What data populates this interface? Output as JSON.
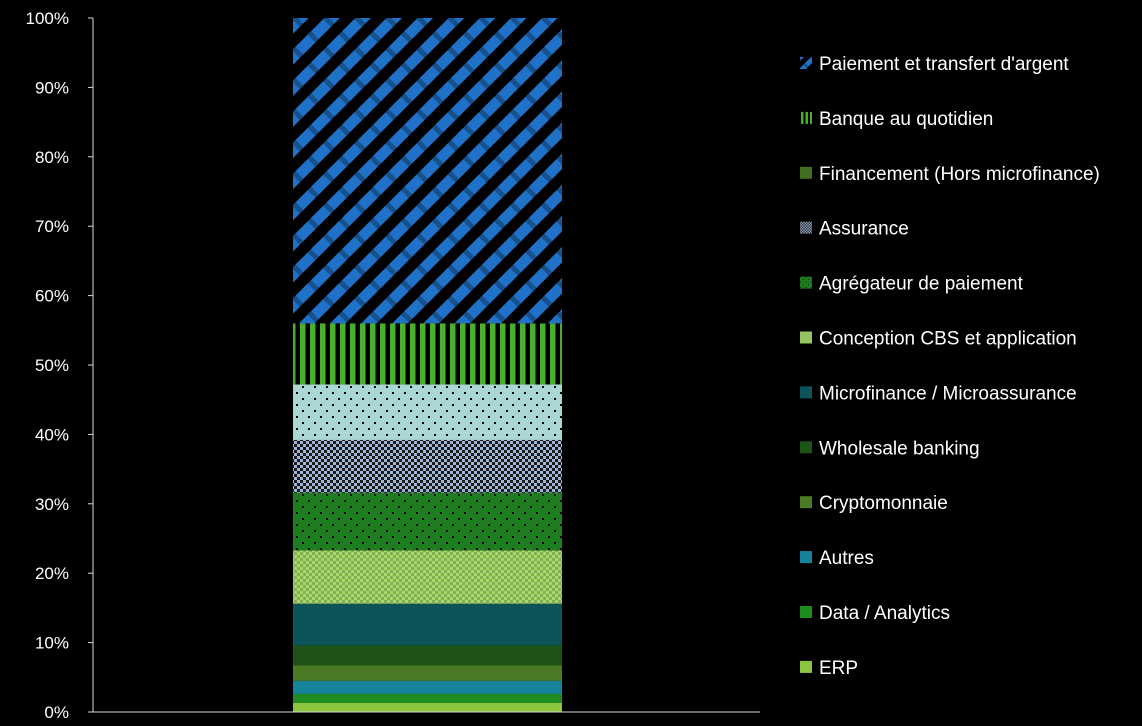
{
  "chart_data": {
    "type": "bar",
    "stacked": true,
    "categories": [
      ""
    ],
    "ylim": [
      0,
      100
    ],
    "y_ticks": [
      "0%",
      "10%",
      "20%",
      "30%",
      "40%",
      "50%",
      "60%",
      "70%",
      "80%",
      "90%",
      "100%"
    ],
    "legend_position": "right",
    "series": [
      {
        "name": "ERP",
        "values": [
          1.3
        ],
        "color": "#8cc63f",
        "pattern": "solid"
      },
      {
        "name": "Data / Analytics",
        "values": [
          1.3
        ],
        "color": "#1e8c1e",
        "pattern": "solid"
      },
      {
        "name": "Autres",
        "values": [
          1.9
        ],
        "color": "#17839a",
        "pattern": "solid"
      },
      {
        "name": "Cryptomonnaie",
        "values": [
          2.2
        ],
        "color": "#4a7b24",
        "pattern": "solid"
      },
      {
        "name": "Wholesale banking",
        "values": [
          2.9
        ],
        "color": "#1d5416",
        "pattern": "solid"
      },
      {
        "name": "Microfinance / Microassurance",
        "values": [
          6.0
        ],
        "color": "#0c5459",
        "pattern": "solid"
      },
      {
        "name": "Conception CBS et application",
        "values": [
          7.7
        ],
        "color": "#a6d96a",
        "pattern": "checker"
      },
      {
        "name": "Agrégateur de paiement",
        "values": [
          8.3
        ],
        "color": "#1e7d1e",
        "pattern": "dots"
      },
      {
        "name": "Assurance",
        "values": [
          7.6
        ],
        "color": "#9fb6d6",
        "pattern": "checker-dots"
      },
      {
        "name": "",
        "values": [
          8.0
        ],
        "color": "#a9d8d4",
        "pattern": "dots"
      },
      {
        "name": "Banque au quotidien",
        "values": [
          8.8
        ],
        "color": "#49b02f",
        "pattern": "vertical"
      },
      {
        "name": "Paiement et transfert d'argent",
        "values": [
          44.0
        ],
        "color": "#1f72c8",
        "pattern": "diagonal"
      }
    ],
    "legend": [
      "Paiement et transfert d'argent",
      "Banque au quotidien",
      "Financement (Hors microfinance)",
      "Assurance",
      "Agrégateur de paiement",
      "Conception CBS et application",
      "Microfinance / Microassurance",
      "Wholesale banking",
      "Cryptomonnaie",
      "Autres",
      "Data / Analytics",
      "ERP"
    ],
    "legend_swatches": [
      {
        "color": "#1f72c8",
        "pattern": "diagonal"
      },
      {
        "color": "#49b02f",
        "pattern": "vertical"
      },
      {
        "color": "#4a7b24",
        "pattern": "checker"
      },
      {
        "color": "#9fb6d6",
        "pattern": "checker-dots"
      },
      {
        "color": "#1e7d1e",
        "pattern": "dots"
      },
      {
        "color": "#a6d96a",
        "pattern": "checker"
      },
      {
        "color": "#0c5459",
        "pattern": "solid"
      },
      {
        "color": "#1d5416",
        "pattern": "solid"
      },
      {
        "color": "#4a7b24",
        "pattern": "solid"
      },
      {
        "color": "#17839a",
        "pattern": "solid"
      },
      {
        "color": "#1e8c1e",
        "pattern": "solid"
      },
      {
        "color": "#8cc63f",
        "pattern": "solid"
      }
    ],
    "axis_color": "#d9d9d9",
    "background": "#000000"
  }
}
